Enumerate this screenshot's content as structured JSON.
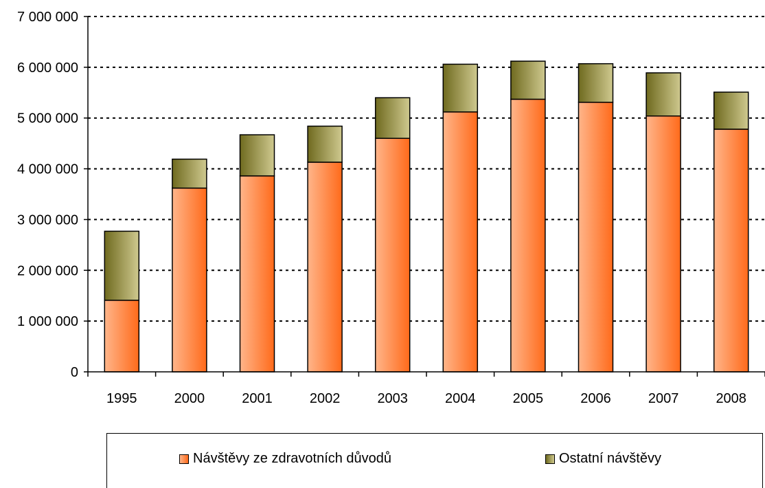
{
  "chart_data": {
    "type": "bar",
    "stacked": true,
    "categories": [
      "1995",
      "2000",
      "2001",
      "2002",
      "2003",
      "2004",
      "2005",
      "2006",
      "2007",
      "2008"
    ],
    "series": [
      {
        "name": "Návštěvy ze zdravotních důvodů",
        "values": [
          1410000,
          3620000,
          3860000,
          4130000,
          4600000,
          5120000,
          5370000,
          5310000,
          5040000,
          4780000
        ],
        "color": "#ff7a33"
      },
      {
        "name": "Ostatní návštěvy",
        "values": [
          1360000,
          570000,
          810000,
          710000,
          800000,
          940000,
          750000,
          760000,
          850000,
          730000
        ],
        "color": "#8f8a3a"
      }
    ],
    "ylim": [
      0,
      7000000
    ],
    "yticks": [
      0,
      1000000,
      2000000,
      3000000,
      4000000,
      5000000,
      6000000,
      7000000
    ],
    "ytick_labels": [
      "0",
      "1 000 000",
      "2 000 000",
      "3 000 000",
      "4 000 000",
      "5 000 000",
      "6 000 000",
      "7 000 000"
    ],
    "grid": "horizontal dotted",
    "legend_position": "bottom"
  }
}
